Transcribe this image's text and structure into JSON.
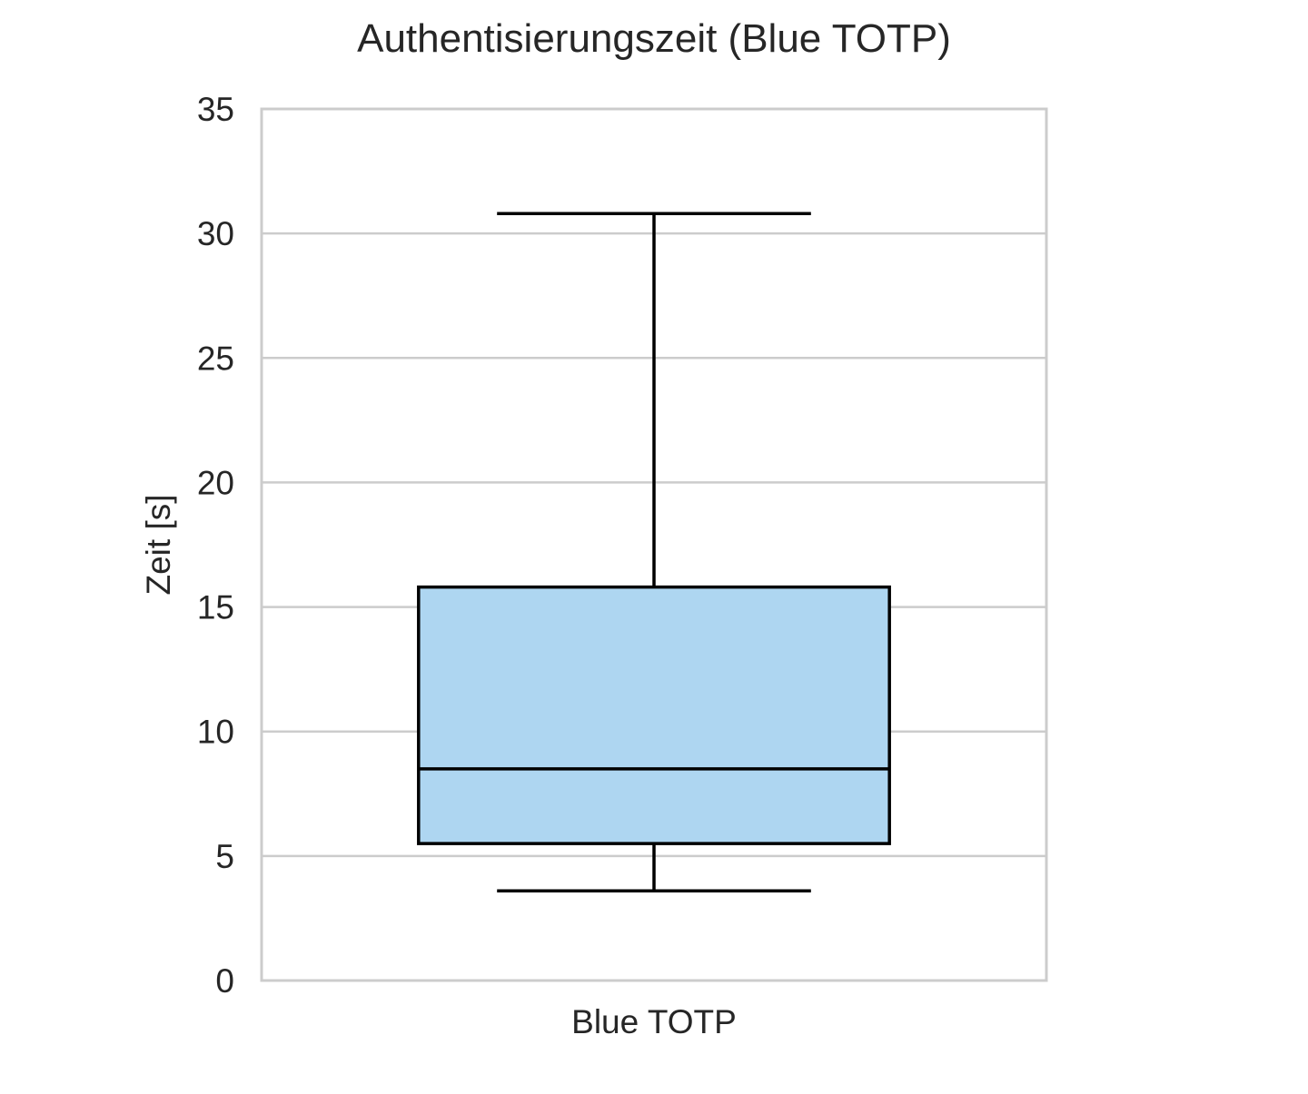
{
  "chart_data": {
    "type": "box",
    "title": "Authentisierungszeit (Blue TOTP)",
    "xlabel": "",
    "ylabel": "Zeit [s]",
    "categories": [
      "Blue TOTP"
    ],
    "ylim": [
      0,
      35
    ],
    "yticks": [
      "0",
      "5",
      "10",
      "15",
      "20",
      "25",
      "30",
      "35"
    ],
    "grid": "horizontal",
    "boxes": [
      {
        "category": "Blue TOTP",
        "whisker_low": 3.6,
        "q1": 5.5,
        "median": 8.5,
        "q3": 15.8,
        "whisker_high": 30.8
      }
    ],
    "colors": {
      "box_fill": "#aed6f1",
      "box_edge": "#000000",
      "grid": "#cccccc",
      "text": "#262626"
    }
  }
}
